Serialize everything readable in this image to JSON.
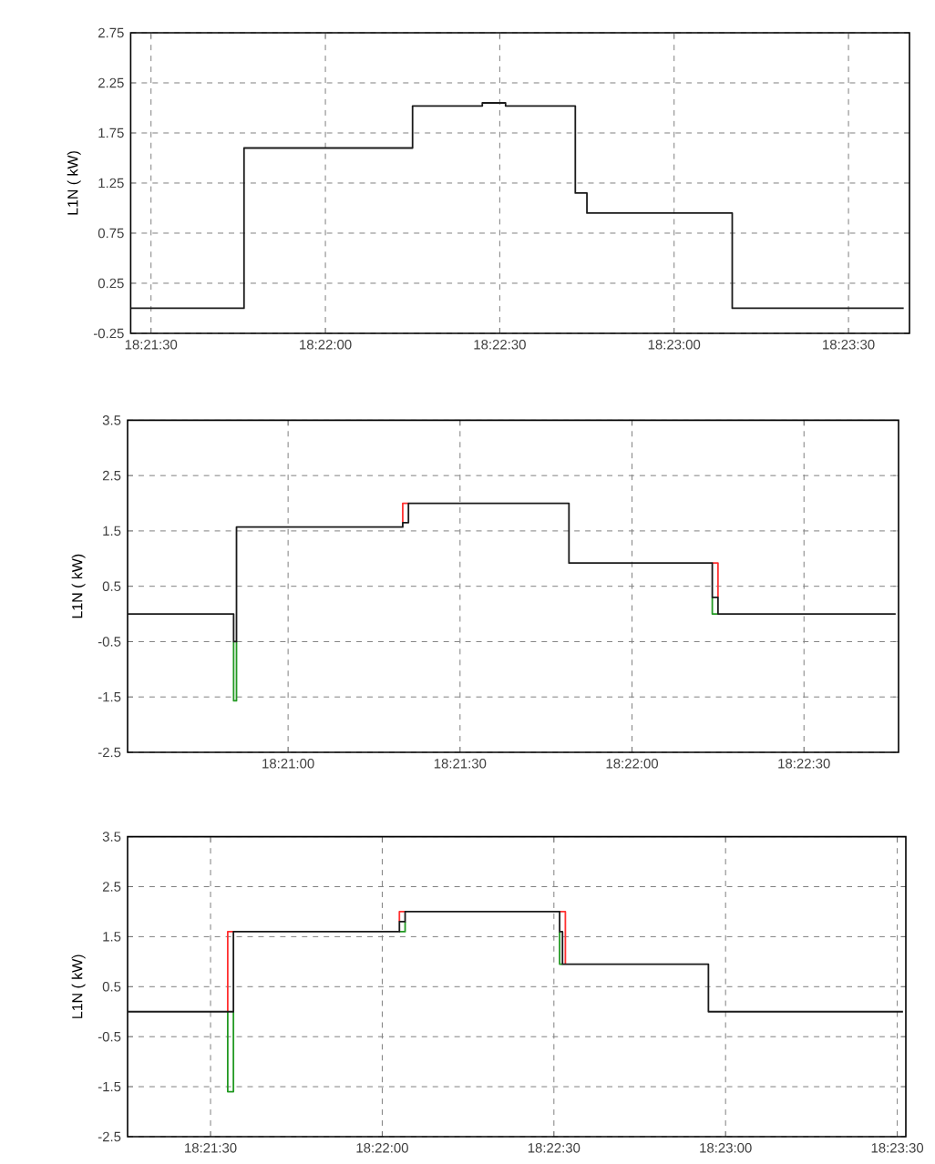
{
  "chart_data": [
    {
      "type": "step",
      "ylabel": "L1N ( kW)",
      "xlim": [
        18.357361,
        18.394583
      ],
      "ylim": [
        -0.25,
        2.75
      ],
      "xticks": [
        {
          "value": 18.358333,
          "label": "18:21:30"
        },
        {
          "value": 18.366667,
          "label": "18:22:00"
        },
        {
          "value": 18.375,
          "label": "18:22:30"
        },
        {
          "value": 18.383333,
          "label": "18:23:00"
        },
        {
          "value": 18.391667,
          "label": "18:23:30"
        }
      ],
      "yticks": [
        -0.25,
        0.25,
        0.75,
        1.25,
        1.75,
        2.25,
        2.75
      ],
      "grid": true,
      "series": [
        {
          "color": "#1a1a1a",
          "x": [
            18.357361,
            18.362778,
            18.370833,
            18.374167,
            18.375278,
            18.378611,
            18.379167,
            18.386111,
            18.394306
          ],
          "values": [
            0,
            1.6,
            2.02,
            2.05,
            2.02,
            1.15,
            0.95,
            0,
            0
          ]
        }
      ]
    },
    {
      "type": "step",
      "ylabel": "L1N ( kW)",
      "xlim": [
        18.342222,
        18.379583
      ],
      "ylim": [
        -2.5,
        3.5
      ],
      "xticks": [
        {
          "value": 18.35,
          "label": "18:21:00"
        },
        {
          "value": 18.358333,
          "label": "18:21:30"
        },
        {
          "value": 18.366667,
          "label": "18:22:00"
        },
        {
          "value": 18.375,
          "label": "18:22:30"
        }
      ],
      "yticks": [
        -2.5,
        -1.5,
        -0.5,
        0.5,
        1.5,
        2.5,
        3.5
      ],
      "grid": true,
      "series": [
        {
          "type": "line",
          "color": "#ff3030",
          "x": [
            18.355556,
            18.355556,
            18.355833,
            null,
            18.370556,
            18.370833,
            18.370833
          ],
          "values": [
            1.65,
            2.0,
            2.0,
            null,
            0.92,
            0.92,
            0.3
          ]
        },
        {
          "type": "line",
          "color": "#229922",
          "x": [
            18.347361,
            18.347361,
            18.3475,
            18.3475,
            null,
            18.370556,
            18.370556,
            18.370833
          ],
          "values": [
            -0.5,
            -1.57,
            -1.57,
            -0.5,
            null,
            0.3,
            0,
            0
          ]
        },
        {
          "color": "#1a1a1a",
          "x": [
            18.342222,
            18.347361,
            18.3475,
            18.355556,
            18.355833,
            18.363611,
            18.370556,
            18.370833,
            18.379444
          ],
          "values": [
            0,
            -0.5,
            1.57,
            1.65,
            2.0,
            0.92,
            0.3,
            0,
            0
          ]
        }
      ]
    },
    {
      "type": "step",
      "ylabel": "L1N ( kW)",
      "xlim": [
        18.354306,
        18.392083
      ],
      "ylim": [
        -2.5,
        3.5
      ],
      "xticks": [
        {
          "value": 18.358333,
          "label": "18:21:30"
        },
        {
          "value": 18.366667,
          "label": "18:22:00"
        },
        {
          "value": 18.375,
          "label": "18:22:30"
        },
        {
          "value": 18.383333,
          "label": "18:23:00"
        },
        {
          "value": 18.391667,
          "label": "18:23:30"
        }
      ],
      "yticks": [
        -2.5,
        -1.5,
        -0.5,
        0.5,
        1.5,
        2.5,
        3.5
      ],
      "grid": true,
      "series": [
        {
          "type": "line",
          "color": "#ff3030",
          "x": [
            18.359167,
            18.359167,
            18.359444,
            null,
            18.3675,
            18.3675,
            18.367778,
            null,
            18.375278,
            18.375556,
            18.375556
          ],
          "values": [
            0,
            1.6,
            1.6,
            null,
            1.8,
            2.0,
            2.0,
            null,
            2.0,
            2.0,
            0.95
          ]
        },
        {
          "type": "line",
          "color": "#229922",
          "x": [
            18.359167,
            18.359167,
            18.359444,
            18.359444,
            null,
            18.3675,
            18.367778,
            18.367778,
            null,
            18.375278,
            18.375278,
            18.375417
          ],
          "values": [
            0,
            -1.6,
            -1.6,
            0,
            null,
            1.6,
            1.6,
            1.8,
            null,
            1.6,
            0.95,
            0.95
          ]
        },
        {
          "color": "#1a1a1a",
          "x": [
            18.354306,
            18.359444,
            18.3675,
            18.367778,
            18.375278,
            18.375417,
            18.3825,
            18.391944
          ],
          "values": [
            0,
            1.6,
            1.8,
            2.0,
            1.6,
            0.95,
            0,
            0
          ]
        }
      ]
    }
  ]
}
